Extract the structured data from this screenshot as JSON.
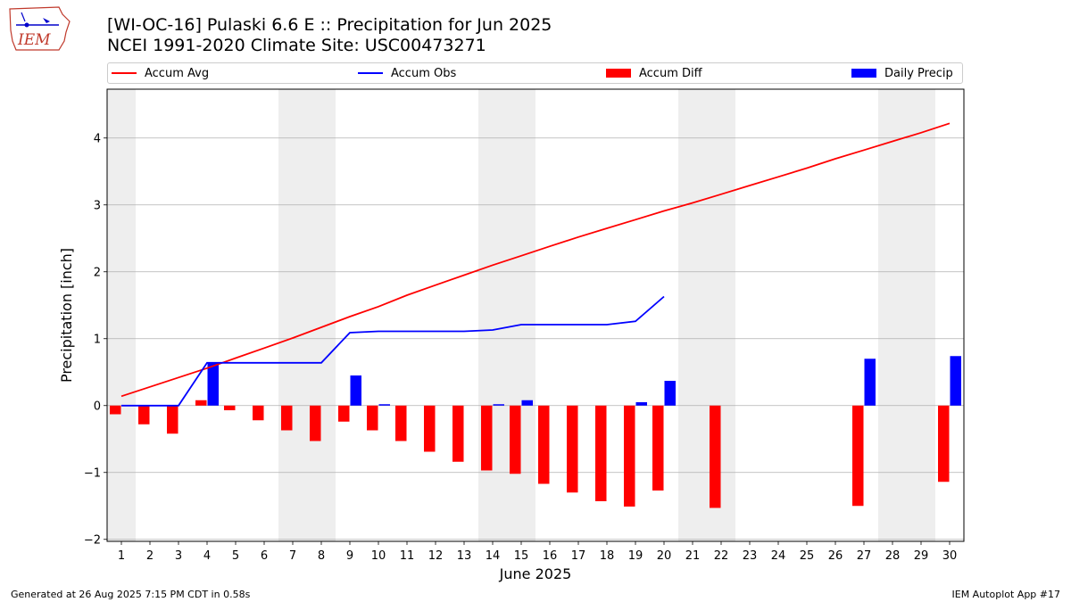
{
  "header": {
    "logo_text": "IEM",
    "title_line1": "[WI-OC-16] Pulaski 6.6 E :: Precipitation for Jun 2025",
    "title_line2": "NCEI 1991-2020 Climate Site: USC00473271"
  },
  "legend": [
    {
      "label": "Accum Avg",
      "kind": "line",
      "color": "#ff0000"
    },
    {
      "label": "Accum Obs",
      "kind": "line",
      "color": "#0000ff"
    },
    {
      "label": "Accum Diff",
      "kind": "bar",
      "color": "#ff0000"
    },
    {
      "label": "Daily Precip",
      "kind": "bar",
      "color": "#0000ff"
    }
  ],
  "footer": {
    "left": "Generated at 26 Aug 2025 7:15 PM CDT in 0.58s",
    "right": "IEM Autoplot App #17"
  },
  "chart_data": {
    "type": "bar",
    "xlabel": "June 2025",
    "ylabel": "Precipitation [inch]",
    "x": [
      1,
      2,
      3,
      4,
      5,
      6,
      7,
      8,
      9,
      10,
      11,
      12,
      13,
      14,
      15,
      16,
      17,
      18,
      19,
      20,
      21,
      22,
      23,
      24,
      25,
      26,
      27,
      28,
      29,
      30
    ],
    "xlim": [
      0.5,
      30.5
    ],
    "ylim": [
      -2.03,
      4.73
    ],
    "yticks": [
      -2,
      -1,
      0,
      1,
      2,
      3,
      4
    ],
    "ytick_labels": [
      "−2",
      "−1",
      "0",
      "1",
      "2",
      "3",
      "4"
    ],
    "grid": "horizontal",
    "weekend_shading": [
      [
        0.5,
        1.5
      ],
      [
        6.5,
        8.5
      ],
      [
        13.5,
        15.5
      ],
      [
        20.5,
        22.5
      ],
      [
        27.5,
        29.5
      ]
    ],
    "shade_color": "#eeeeee",
    "series": [
      {
        "name": "Accum Avg",
        "type": "line",
        "color": "#ff0000",
        "values": [
          0.14,
          0.28,
          0.42,
          0.56,
          0.71,
          0.86,
          1.01,
          1.17,
          1.33,
          1.48,
          1.65,
          1.8,
          1.95,
          2.1,
          2.24,
          2.38,
          2.52,
          2.65,
          2.78,
          2.91,
          3.03,
          3.16,
          3.29,
          3.42,
          3.55,
          3.69,
          3.82,
          3.95,
          4.08,
          4.22
        ]
      },
      {
        "name": "Accum Obs",
        "type": "line",
        "color": "#0000ff",
        "values": [
          0.0,
          0.0,
          0.0,
          0.64,
          0.64,
          0.64,
          0.64,
          0.64,
          1.09,
          1.11,
          1.11,
          1.11,
          1.11,
          1.13,
          1.21,
          1.21,
          1.21,
          1.21,
          1.26,
          1.63,
          null,
          null,
          null,
          null,
          null,
          null,
          null,
          null,
          null,
          null
        ]
      },
      {
        "name": "Accum Diff",
        "type": "bar",
        "color": "#ff0000",
        "values": [
          -0.13,
          -0.28,
          -0.42,
          0.08,
          -0.07,
          -0.22,
          -0.37,
          -0.53,
          -0.24,
          -0.37,
          -0.53,
          -0.69,
          -0.84,
          -0.97,
          -1.02,
          -1.17,
          -1.3,
          -1.43,
          -1.51,
          -1.27,
          null,
          -1.53,
          null,
          null,
          null,
          null,
          -1.5,
          null,
          null,
          -1.14
        ]
      },
      {
        "name": "Daily Precip",
        "type": "bar",
        "color": "#0000ff",
        "values": [
          0,
          0,
          0,
          0.64,
          0,
          0,
          0,
          0,
          0.45,
          0.02,
          0,
          0,
          0,
          0.02,
          0.08,
          0,
          0,
          0,
          0.05,
          0.37,
          null,
          null,
          null,
          null,
          null,
          null,
          0.7,
          null,
          null,
          0.74
        ]
      }
    ]
  }
}
